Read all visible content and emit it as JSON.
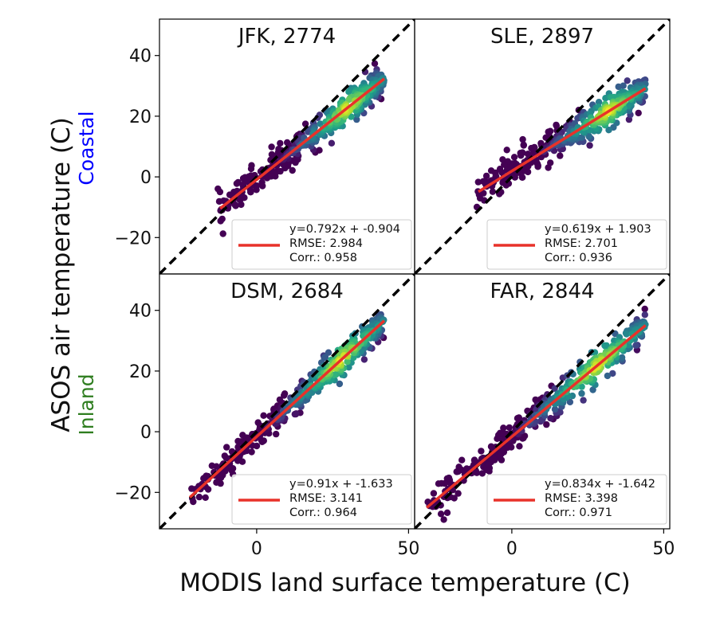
{
  "figure": {
    "xlabel": "MODIS land surface temperature (C)",
    "ylabel": "ASOS air temperature (C)",
    "row_labels": [
      {
        "text": "Coastal",
        "color": "#0000ff"
      },
      {
        "text": "Inland",
        "color": "#2e7d1f"
      }
    ]
  },
  "colors": {
    "fit_line": "#e8322a",
    "identity_line": "#000000",
    "colormap": "viridis"
  },
  "chart_data": [
    {
      "type": "scatter",
      "title": "JFK, 2774",
      "n_points": 2774,
      "xlim": [
        -32,
        52
      ],
      "ylim": [
        -32,
        52
      ],
      "xticks": [
        0,
        50
      ],
      "yticks": [
        -20,
        0,
        20,
        40
      ],
      "density_colored": true,
      "x_range": [
        -13,
        42
      ],
      "fit": {
        "slope": 0.792,
        "intercept": -0.904,
        "x_start": -12,
        "x_end": 42
      },
      "identity_line": true,
      "legend": {
        "position": "lower right",
        "lines": [
          "y=0.792x + -0.904",
          "RMSE: 2.984",
          "Corr.: 0.958"
        ]
      }
    },
    {
      "type": "scatter",
      "title": "SLE, 2897",
      "n_points": 2897,
      "xlim": [
        -32,
        52
      ],
      "ylim": [
        -32,
        52
      ],
      "xticks": [
        0,
        50
      ],
      "yticks": [
        -20,
        0,
        20,
        40
      ],
      "density_colored": true,
      "x_range": [
        -12,
        44
      ],
      "fit": {
        "slope": 0.619,
        "intercept": 1.903,
        "x_start": -11,
        "x_end": 44
      },
      "identity_line": true,
      "legend": {
        "position": "lower right",
        "lines": [
          "y=0.619x + 1.903",
          "RMSE: 2.701",
          "Corr.: 0.936"
        ]
      }
    },
    {
      "type": "scatter",
      "title": "DSM, 2684",
      "n_points": 2684,
      "xlim": [
        -32,
        52
      ],
      "ylim": [
        -32,
        52
      ],
      "xticks": [
        0,
        50
      ],
      "yticks": [
        -20,
        0,
        20,
        40
      ],
      "density_colored": true,
      "x_range": [
        -22,
        42
      ],
      "fit": {
        "slope": 0.91,
        "intercept": -1.633,
        "x_start": -22,
        "x_end": 42
      },
      "identity_line": true,
      "legend": {
        "position": "lower right",
        "lines": [
          "y=0.91x + -1.633",
          "RMSE: 3.141",
          "Corr.: 0.964"
        ]
      }
    },
    {
      "type": "scatter",
      "title": "FAR, 2844",
      "n_points": 2844,
      "xlim": [
        -32,
        52
      ],
      "ylim": [
        -32,
        52
      ],
      "xticks": [
        0,
        50
      ],
      "yticks": [
        -20,
        0,
        20,
        40
      ],
      "density_colored": true,
      "x_range": [
        -28,
        44
      ],
      "fit": {
        "slope": 0.834,
        "intercept": -1.642,
        "x_start": -28,
        "x_end": 44
      },
      "identity_line": true,
      "legend": {
        "position": "lower right",
        "lines": [
          "y=0.834x + -1.642",
          "RMSE: 3.398",
          "Corr.: 0.971"
        ]
      }
    }
  ]
}
